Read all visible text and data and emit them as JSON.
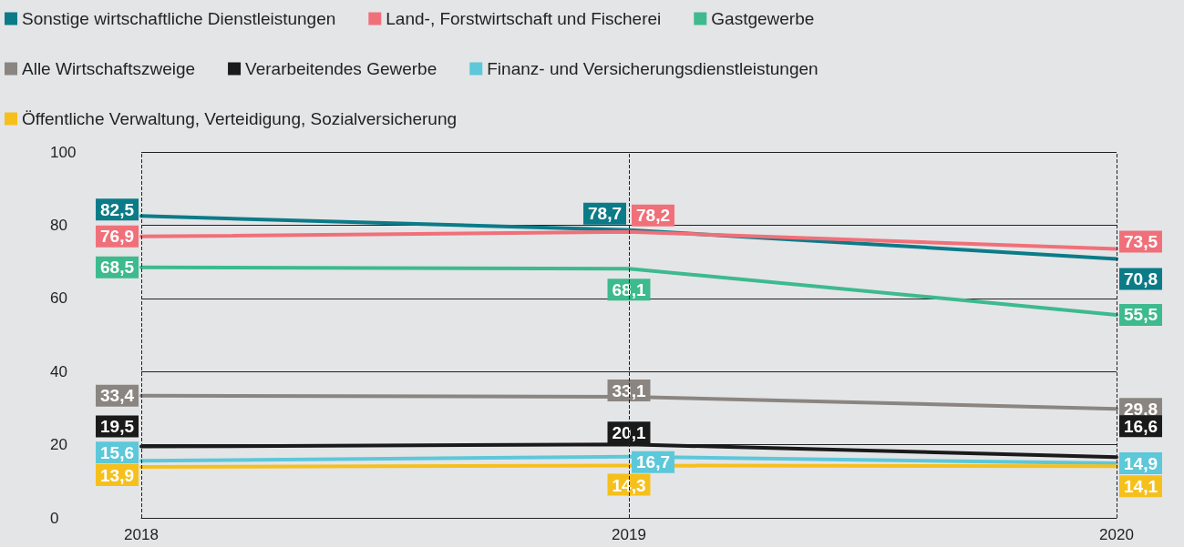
{
  "chart_data": {
    "type": "line",
    "categories": [
      "2018",
      "2019",
      "2020"
    ],
    "series": [
      {
        "name": "Sonstige wirtschaftliche Dienstleistungen",
        "color": "#0b7b88",
        "values": [
          82.5,
          78.7,
          70.8
        ],
        "value_labels": [
          "82,5",
          "78,7",
          "70,8"
        ]
      },
      {
        "name": "Land-, Forstwirtschaft und Fischerei",
        "color": "#f0707a",
        "values": [
          76.9,
          78.2,
          73.5
        ],
        "value_labels": [
          "76,9",
          "78,2",
          "73,5"
        ]
      },
      {
        "name": "Gastgewerbe",
        "color": "#3dba8e",
        "values": [
          68.5,
          68.1,
          55.5
        ],
        "value_labels": [
          "68,5",
          "68,1",
          "55,5"
        ]
      },
      {
        "name": "Alle Wirtschaftszweige",
        "color": "#8a8580",
        "values": [
          33.4,
          33.1,
          29.8
        ],
        "value_labels": [
          "33,4",
          "33,1",
          "29,8"
        ]
      },
      {
        "name": "Verarbeitendes Gewerbe",
        "color": "#1a1a1a",
        "values": [
          19.5,
          20.1,
          16.6
        ],
        "value_labels": [
          "19,5",
          "20,1",
          "16,6"
        ]
      },
      {
        "name": "Finanz- und Versicherungsdienstleistungen",
        "color": "#5cc8d9",
        "values": [
          15.6,
          16.7,
          14.9
        ],
        "value_labels": [
          "15,6",
          "16,7",
          "14,9"
        ]
      },
      {
        "name": "Öffentliche Verwaltung, Verteidigung, Sozialversicherung",
        "color": "#f6c01c",
        "values": [
          13.9,
          14.3,
          14.1
        ],
        "value_labels": [
          "13,9",
          "14,3",
          "14,1"
        ]
      }
    ],
    "ref_lines": [
      {
        "axis": "x",
        "value": "2018",
        "line_style": "dashed",
        "color": "#222222"
      },
      {
        "axis": "x",
        "value": "2019",
        "line_style": "dashed",
        "color": "#222222"
      },
      {
        "axis": "x",
        "value": "2020",
        "line_style": "dashed",
        "color": "#222222"
      }
    ],
    "ylim": [
      0,
      100
    ],
    "yticks": [
      0,
      20,
      40,
      60,
      80,
      100
    ],
    "grid": "y",
    "legend": "top left",
    "marker": "none",
    "line_style": "solid"
  }
}
